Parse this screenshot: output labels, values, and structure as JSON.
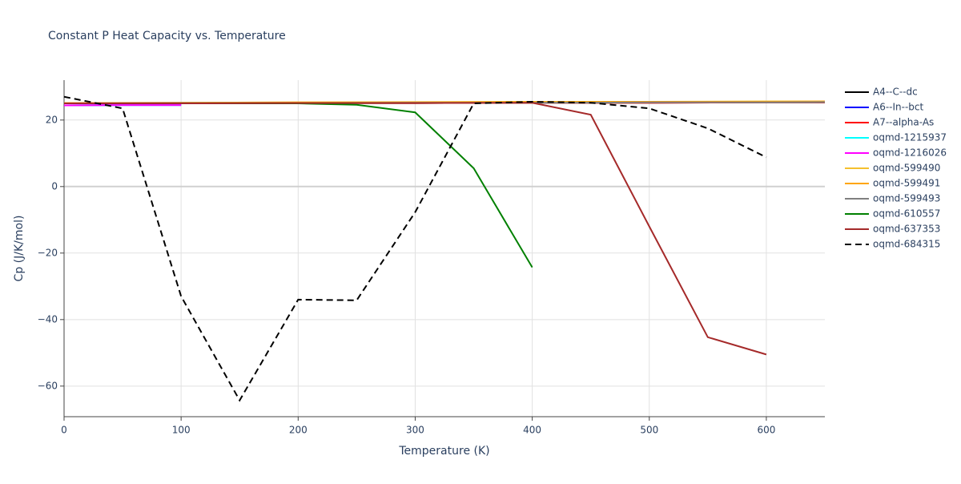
{
  "chart_data": {
    "type": "line",
    "title": "Constant P Heat Capacity vs. Temperature",
    "x_label": "Temperature (K)",
    "y_label": "Cp (J/K/mol)",
    "xlim": [
      0,
      650
    ],
    "ylim": [
      -69.2,
      32
    ],
    "xticks": [
      0,
      100,
      200,
      300,
      400,
      500,
      600
    ],
    "yticks": [
      {
        "value": -60,
        "label": "−60"
      },
      {
        "value": -40,
        "label": "−40"
      },
      {
        "value": -20,
        "label": "−20"
      },
      0,
      20
    ],
    "grid": true,
    "legend": "right",
    "series": [
      {
        "name": "A4--C--dc",
        "color": "#000000",
        "x": [
          0,
          100,
          200,
          300,
          400,
          500,
          600,
          650
        ],
        "values": [
          25,
          25,
          25.1,
          25.1,
          25.2,
          25.2,
          25.3,
          25.3
        ]
      },
      {
        "name": "A6--In--bct",
        "color": "#0000ff",
        "x": [
          0,
          50,
          100
        ],
        "values": [
          24.4,
          24.5,
          24.5
        ]
      },
      {
        "name": "A7--alpha-As",
        "color": "#ff0000",
        "x": [
          0,
          100,
          200,
          300,
          400,
          500,
          600,
          650
        ],
        "values": [
          25,
          25,
          25.1,
          25.1,
          25.2,
          25.2,
          25.3,
          25.3
        ]
      },
      {
        "name": "oqmd-1215937",
        "color": "#00ffff",
        "x": [
          0,
          50,
          100
        ],
        "values": [
          24.4,
          24.5,
          24.5
        ]
      },
      {
        "name": "oqmd-1216026",
        "color": "#ff00ff",
        "x": [
          0,
          50,
          100
        ],
        "values": [
          24.4,
          24.5,
          24.5
        ]
      },
      {
        "name": "oqmd-599490",
        "color": "#f5c02e",
        "x": [
          0,
          100,
          200,
          300,
          400,
          500,
          600,
          650
        ],
        "values": [
          25.1,
          25.2,
          25.3,
          25.4,
          25.5,
          25.5,
          25.6,
          25.6
        ]
      },
      {
        "name": "oqmd-599491",
        "color": "#ffa500",
        "x": [
          0,
          100,
          200,
          300,
          400,
          500,
          600,
          650
        ],
        "values": [
          25.1,
          25.2,
          25.3,
          25.3,
          25.4,
          25.5,
          25.5,
          25.6
        ]
      },
      {
        "name": "oqmd-599493",
        "color": "#808080",
        "x": [
          0,
          100,
          200,
          300,
          400,
          500,
          600,
          650
        ],
        "values": [
          25,
          25.1,
          25.1,
          25.2,
          25.2,
          25.3,
          25.3,
          25.4
        ]
      },
      {
        "name": "oqmd-610557",
        "color": "#008000",
        "x": [
          0,
          50,
          100,
          150,
          200,
          250,
          300,
          350,
          400
        ],
        "values": [
          25,
          25,
          25,
          25,
          25,
          24.6,
          22.3,
          5.5,
          -24.3
        ]
      },
      {
        "name": "oqmd-637353",
        "color": "#a52a2a",
        "x": [
          0,
          100,
          200,
          300,
          400,
          450,
          500,
          550,
          600
        ],
        "values": [
          25,
          25,
          25.1,
          25.1,
          25.2,
          21.6,
          -12,
          -45.3,
          -50.5
        ]
      },
      {
        "name": "oqmd-684315",
        "color": "#000000",
        "dash": true,
        "x": [
          0,
          50,
          100,
          150,
          200,
          250,
          300,
          350,
          400,
          450,
          500,
          550,
          600
        ],
        "values": [
          27,
          23.5,
          -33,
          -64.3,
          -34,
          -34.2,
          -7.7,
          25,
          25.5,
          25.2,
          23.5,
          17.5,
          8.8
        ]
      }
    ]
  }
}
